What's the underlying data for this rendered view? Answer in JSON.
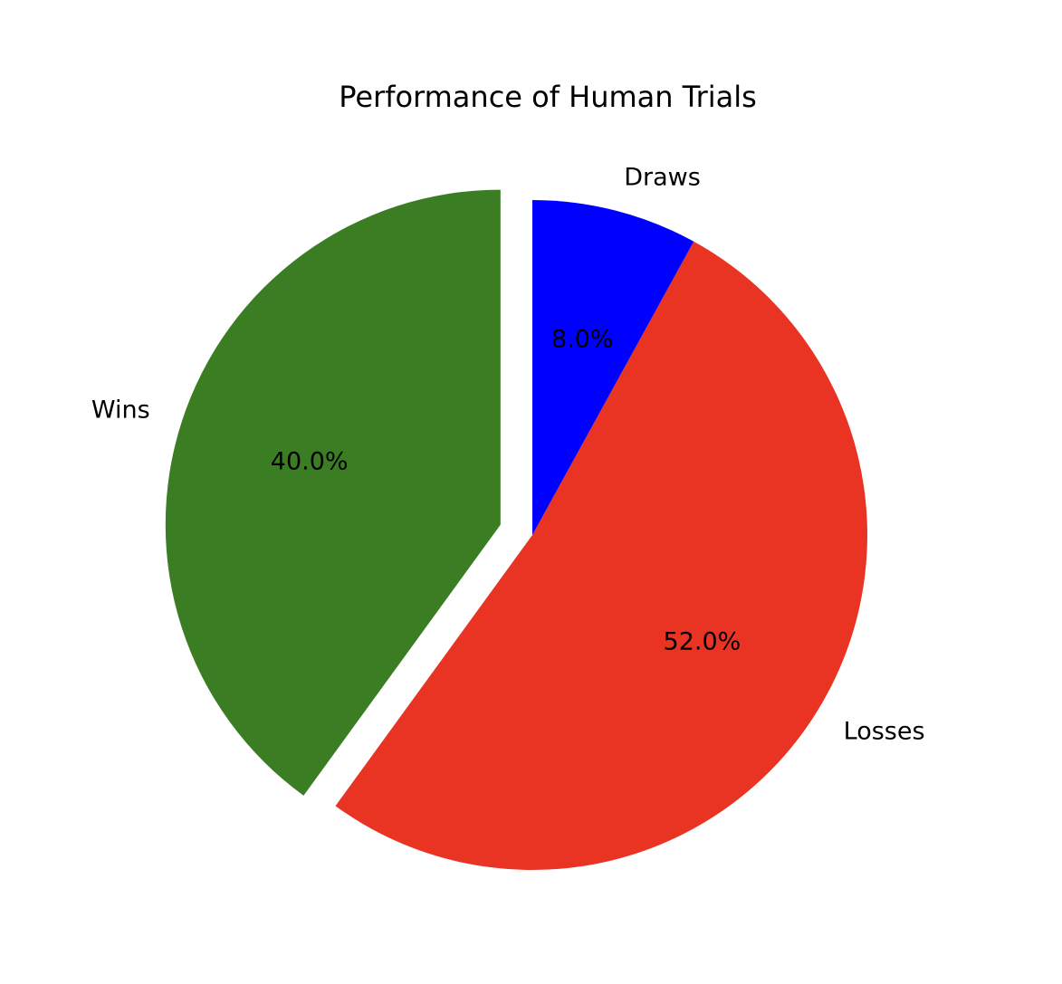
{
  "chart_data": {
    "type": "pie",
    "title": "Performance of Human Trials",
    "categories": [
      "Wins",
      "Losses",
      "Draws"
    ],
    "values": [
      40.0,
      52.0,
      8.0
    ],
    "percent_labels": [
      "40.0%",
      "52.0%",
      "8.0%"
    ],
    "colors": [
      "#3a7d22",
      "#e93323",
      "#0000ff"
    ],
    "exploded": [
      "Wins"
    ],
    "start_angle_deg": 90,
    "direction": "counterclockwise",
    "legend": "none"
  }
}
